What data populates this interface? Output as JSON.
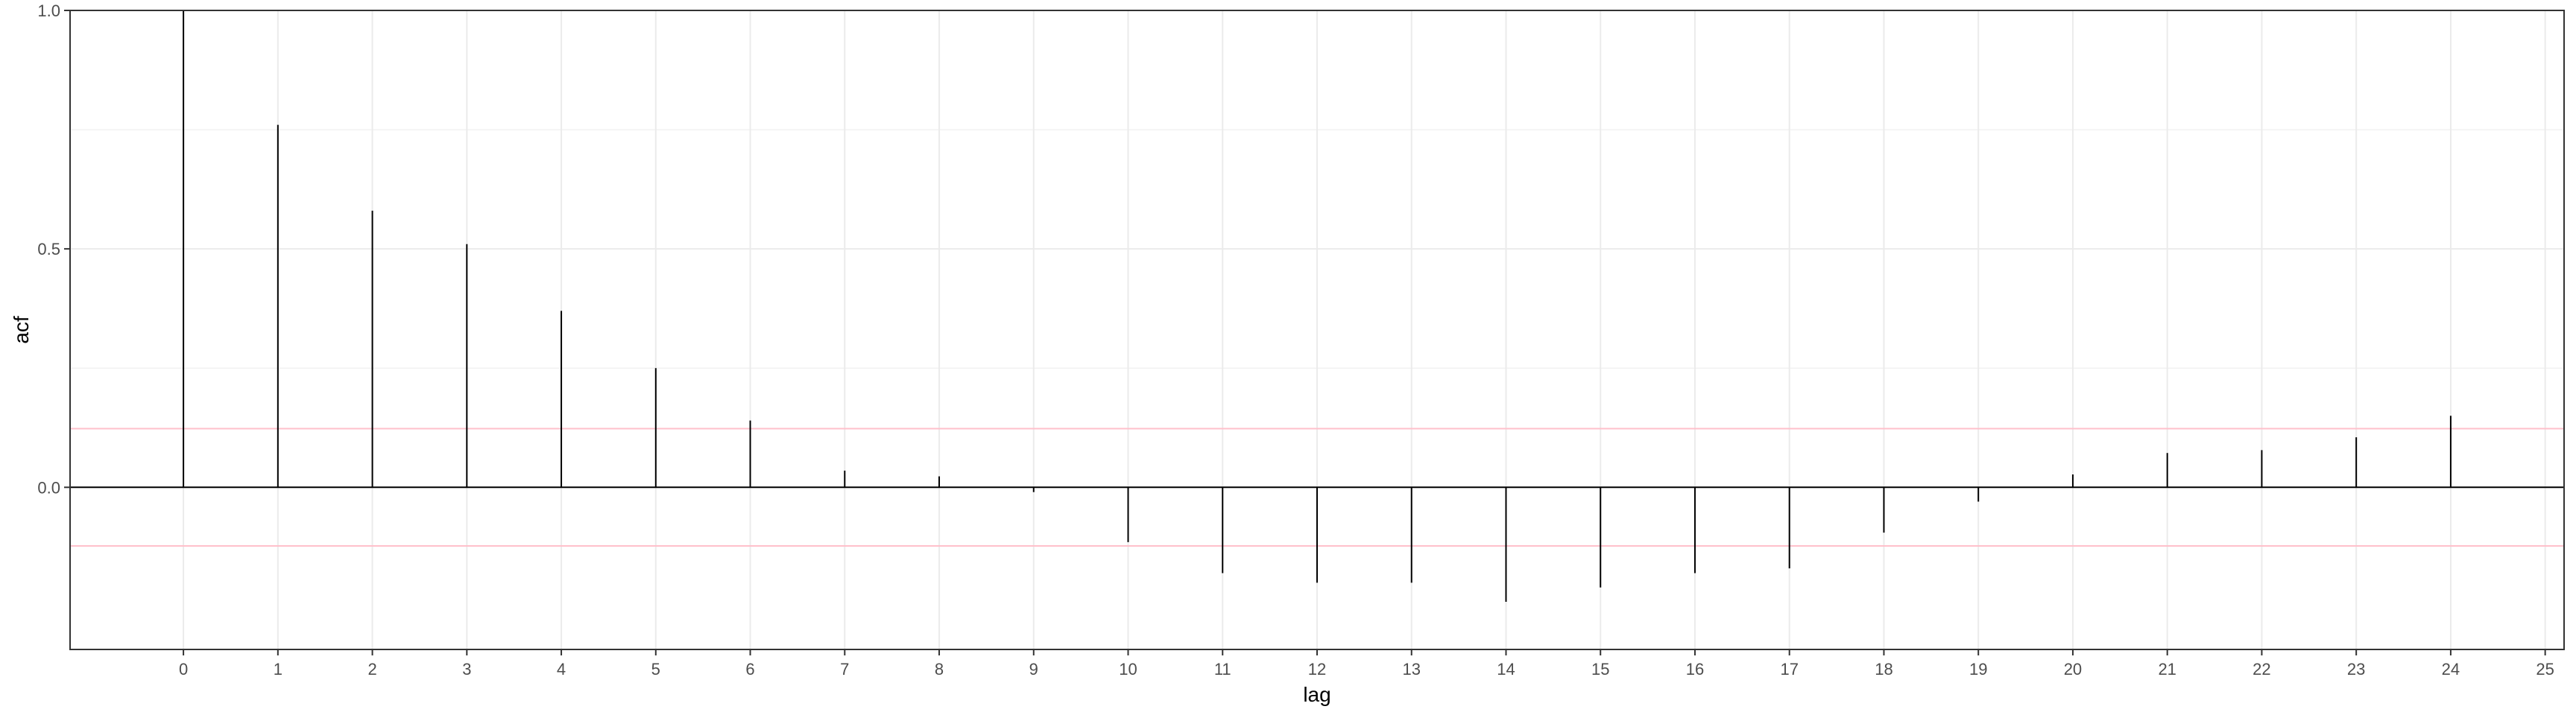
{
  "chart_data": {
    "type": "bar",
    "title": "",
    "xlabel": "lag",
    "ylabel": "acf",
    "x": [
      0,
      1,
      2,
      3,
      4,
      5,
      6,
      7,
      8,
      9,
      10,
      11,
      12,
      13,
      14,
      15,
      16,
      17,
      18,
      19,
      20,
      21,
      22,
      23,
      24
    ],
    "values": [
      1.0,
      0.76,
      0.58,
      0.51,
      0.37,
      0.25,
      0.14,
      0.035,
      0.023,
      -0.01,
      -0.115,
      -0.18,
      -0.2,
      -0.2,
      -0.24,
      -0.21,
      -0.18,
      -0.17,
      -0.095,
      -0.03,
      0.027,
      0.072,
      0.078,
      0.105,
      0.15
    ],
    "xlim": [
      -1.2,
      25.2
    ],
    "ylim": [
      -0.34,
      1.0
    ],
    "x_ticks": [
      "0",
      "1",
      "2",
      "3",
      "4",
      "5",
      "6",
      "7",
      "8",
      "9",
      "10",
      "11",
      "12",
      "13",
      "14",
      "15",
      "16",
      "17",
      "18",
      "19",
      "20",
      "21",
      "22",
      "23",
      "24",
      "25"
    ],
    "y_ticks": [
      "0.0",
      "0.5",
      "1.0"
    ],
    "confidence_bound": 0.123,
    "grid": true,
    "colors": {
      "bars": "#000000",
      "confidence": "#ffc0cb",
      "grid": "#ebebeb",
      "panel_border": "#333333",
      "zero_line": "#000000"
    }
  }
}
